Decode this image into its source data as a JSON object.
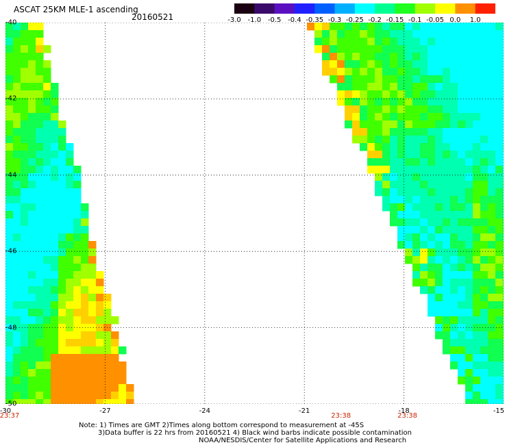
{
  "header": {
    "title": "ASCAT 25KM MLE-1 ascending",
    "date": "20160521"
  },
  "colorbar": {
    "labels": [
      "-3.0",
      "-1.0",
      "-0.5",
      "-0.4",
      "-0.35",
      "-0.3",
      "-0.25",
      "-0.2",
      "-0.15",
      "-0.1",
      "-0.05",
      "0.0",
      "1.0"
    ],
    "colors": [
      "#1a0010",
      "#3a0a6a",
      "#5a10c0",
      "#2020ff",
      "#0060ff",
      "#00b0ff",
      "#00ffff",
      "#00ff90",
      "#20ff20",
      "#a0ff00",
      "#ffff00",
      "#ff9000",
      "#ff2000"
    ]
  },
  "map": {
    "y_ticks": [
      "-40",
      "-42",
      "-44",
      "-46",
      "-48",
      "-50"
    ],
    "x_ticks": [
      "-30",
      "-27",
      "-24",
      "-21",
      "-18",
      "-15"
    ],
    "time_labels": [
      "23:37",
      "23:38",
      "23:38"
    ],
    "lon_range": [
      -30,
      -15
    ],
    "lat_range": [
      -50,
      -40
    ],
    "swaths": [
      {
        "name": "west",
        "color_scheme": "cyan-green"
      },
      {
        "name": "east",
        "color_scheme": "cyan-green"
      }
    ]
  },
  "notes": {
    "line1": "Note: 1) Times are GMT 2)Times along bottom correspond to measurement at -45S",
    "line2": "3)Data buffer is 22 hrs from 20160521 4) Black wind barbs indicate possible contamination",
    "line3": "NOAA/NESDIS/Center for Satellite Applications and Research"
  }
}
